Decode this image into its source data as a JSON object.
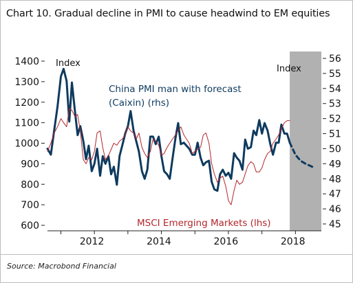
{
  "title": "Chart 10. Gradual decline in PMI to cause headwind to EM equities",
  "source": "Source: Macrobond Financial",
  "colors": {
    "pmi": "#0e3a5e",
    "msci": "#b3262b",
    "forecast_shade": "#b1b1b1",
    "axis": "#222222"
  },
  "chart_data": {
    "type": "line",
    "axis_label_left": "Index",
    "axis_label_right": "Index",
    "left_axis": {
      "min": 600,
      "max": 1400,
      "ticks": [
        "600",
        "700",
        "800",
        "900",
        "1000",
        "1100",
        "1200",
        "1300",
        "1400"
      ]
    },
    "right_axis": {
      "min": 45,
      "max": 56,
      "ticks": [
        "45",
        "46",
        "47",
        "48",
        "49",
        "50",
        "51",
        "52",
        "53",
        "54",
        "55",
        "56"
      ]
    },
    "x_axis": {
      "min": 2010.6,
      "max": 2018.65,
      "ticks": [
        "2012",
        "2014",
        "2016",
        "2018"
      ]
    },
    "forecast_start": 2017.83,
    "grid": false,
    "legend": "inline labels",
    "series": [
      {
        "name": "China PMI man with forecast (Caixin) (rhs)",
        "label": "China PMI man with forecast\n(Caixin) (rhs)",
        "axis": "right",
        "color": "#0e3a5e",
        "x": [
          2010.6,
          2010.7,
          2010.8,
          2010.9,
          2011.0,
          2011.08,
          2011.17,
          2011.25,
          2011.33,
          2011.42,
          2011.5,
          2011.58,
          2011.67,
          2011.75,
          2011.83,
          2011.92,
          2012.0,
          2012.08,
          2012.17,
          2012.25,
          2012.33,
          2012.42,
          2012.5,
          2012.58,
          2012.67,
          2012.75,
          2012.83,
          2012.92,
          2013.0,
          2013.08,
          2013.17,
          2013.25,
          2013.33,
          2013.42,
          2013.5,
          2013.58,
          2013.67,
          2013.75,
          2013.83,
          2013.92,
          2014.0,
          2014.08,
          2014.17,
          2014.25,
          2014.33,
          2014.42,
          2014.5,
          2014.58,
          2014.67,
          2014.75,
          2014.83,
          2014.92,
          2015.0,
          2015.08,
          2015.17,
          2015.25,
          2015.33,
          2015.42,
          2015.5,
          2015.58,
          2015.67,
          2015.75,
          2015.83,
          2015.92,
          2016.0,
          2016.08,
          2016.17,
          2016.25,
          2016.33,
          2016.42,
          2016.5,
          2016.58,
          2016.67,
          2016.75,
          2016.83,
          2016.92,
          2017.0,
          2017.08,
          2017.17,
          2017.25,
          2017.33,
          2017.42,
          2017.5,
          2017.58,
          2017.67,
          2017.75,
          2017.83
        ],
        "values": [
          50.0,
          49.6,
          51.2,
          52.8,
          54.8,
          55.3,
          54.5,
          51.8,
          54.4,
          52.5,
          50.9,
          51.5,
          50.5,
          49.3,
          50.2,
          48.5,
          49.0,
          50.0,
          48.2,
          49.5,
          49.0,
          49.5,
          48.3,
          48.8,
          47.6,
          49.5,
          50.2,
          51.0,
          51.5,
          52.5,
          51.2,
          50.5,
          49.8,
          48.5,
          48.0,
          48.6,
          50.8,
          50.8,
          50.3,
          50.8,
          49.5,
          48.5,
          48.3,
          48.0,
          49.3,
          50.7,
          51.7,
          50.3,
          50.4,
          50.2,
          50.0,
          49.6,
          49.6,
          50.4,
          49.4,
          48.9,
          49.1,
          49.2,
          47.8,
          47.3,
          47.2,
          48.3,
          48.6,
          48.2,
          48.4,
          48.0,
          49.7,
          49.4,
          49.2,
          48.6,
          50.6,
          50.0,
          50.1,
          51.2,
          50.9,
          51.9,
          51.0,
          51.7,
          51.2,
          50.3,
          49.6,
          50.4,
          50.4,
          51.6,
          51.0,
          51.0,
          50.4
        ]
      },
      {
        "name": "China PMI forecast",
        "axis": "right",
        "color": "#0e3a5e",
        "dashed": true,
        "x": [
          2017.83,
          2018.0,
          2018.15,
          2018.3,
          2018.5
        ],
        "values": [
          50.4,
          49.6,
          49.2,
          49.0,
          48.8
        ]
      },
      {
        "name": "MSCI Emerging Markets (lhs)",
        "label": "MSCI Emerging Markets (lhs)",
        "axis": "left",
        "color": "#b3262b",
        "x": [
          2010.6,
          2010.7,
          2010.8,
          2010.9,
          2011.0,
          2011.08,
          2011.17,
          2011.25,
          2011.33,
          2011.42,
          2011.5,
          2011.58,
          2011.67,
          2011.75,
          2011.83,
          2011.92,
          2012.0,
          2012.08,
          2012.17,
          2012.25,
          2012.33,
          2012.42,
          2012.5,
          2012.58,
          2012.67,
          2012.75,
          2012.83,
          2012.92,
          2013.0,
          2013.08,
          2013.17,
          2013.25,
          2013.33,
          2013.42,
          2013.5,
          2013.58,
          2013.67,
          2013.75,
          2013.83,
          2013.92,
          2014.0,
          2014.08,
          2014.17,
          2014.25,
          2014.33,
          2014.42,
          2014.5,
          2014.58,
          2014.67,
          2014.75,
          2014.83,
          2014.92,
          2015.0,
          2015.08,
          2015.17,
          2015.25,
          2015.33,
          2015.42,
          2015.5,
          2015.58,
          2015.67,
          2015.75,
          2015.83,
          2015.92,
          2016.0,
          2016.08,
          2016.17,
          2016.25,
          2016.33,
          2016.42,
          2016.5,
          2016.58,
          2016.67,
          2016.75,
          2016.83,
          2016.92,
          2017.0,
          2017.08,
          2017.17,
          2017.25,
          2017.33,
          2017.42,
          2017.5,
          2017.58,
          2017.67,
          2017.75,
          2017.83
        ],
        "values": [
          960,
          1000,
          1050,
          1080,
          1120,
          1100,
          1080,
          1170,
          1160,
          1130,
          1140,
          1060,
          920,
          900,
          930,
          920,
          960,
          1050,
          1060,
          980,
          920,
          940,
          970,
          1000,
          990,
          1010,
          1020,
          1040,
          1080,
          1060,
          1050,
          1020,
          1050,
          980,
          950,
          930,
          960,
          1020,
          1010,
          990,
          940,
          950,
          980,
          1000,
          1020,
          1040,
          1060,
          1080,
          1040,
          1020,
          1000,
          950,
          960,
          970,
          980,
          1040,
          1050,
          1000,
          900,
          850,
          810,
          830,
          840,
          790,
          720,
          700,
          770,
          820,
          800,
          810,
          850,
          890,
          910,
          900,
          860,
          860,
          880,
          920,
          950,
          960,
          1000,
          1020,
          1040,
          1070,
          1100,
          1110,
          1110
        ]
      }
    ]
  }
}
